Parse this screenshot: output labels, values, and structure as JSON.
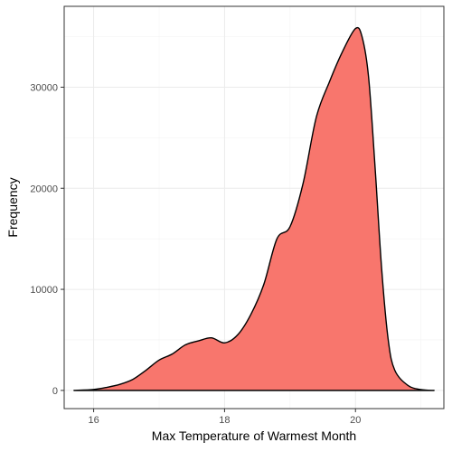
{
  "chart_data": {
    "type": "area",
    "title": "",
    "xlabel": "Max Temperature of Warmest Month",
    "ylabel": "Frequency",
    "xlim": [
      15.55,
      21.35
    ],
    "ylim": [
      -1800,
      38000
    ],
    "x_ticks": [
      16,
      18,
      20
    ],
    "x_tick_labels": [
      "16",
      "18",
      "20"
    ],
    "x_minor_ticks": [
      17,
      19,
      21
    ],
    "y_ticks": [
      0,
      10000,
      20000,
      30000
    ],
    "y_tick_labels": [
      "0",
      "10000",
      "20000",
      "30000"
    ],
    "y_minor_ticks": [
      5000,
      15000,
      25000,
      35000
    ],
    "grid": true,
    "legend": "none",
    "fill_color": "#F8766D",
    "line_color": "#000000",
    "series": [
      {
        "x": [
          15.7,
          16.0,
          16.2,
          16.4,
          16.6,
          16.8,
          17.0,
          17.2,
          17.4,
          17.6,
          17.8,
          18.0,
          18.2,
          18.4,
          18.6,
          18.8,
          19.0,
          19.2,
          19.4,
          19.6,
          19.8,
          20.0,
          20.1,
          20.2,
          20.3,
          20.4,
          20.5,
          20.6,
          20.8,
          21.0,
          21.2
        ],
        "y": [
          0,
          100,
          300,
          600,
          1100,
          2000,
          3000,
          3600,
          4500,
          4900,
          5200,
          4700,
          5500,
          7500,
          10500,
          15000,
          16200,
          20500,
          27000,
          30500,
          33500,
          35800,
          35000,
          31000,
          22000,
          12000,
          5000,
          2000,
          500,
          80,
          0
        ]
      }
    ]
  }
}
